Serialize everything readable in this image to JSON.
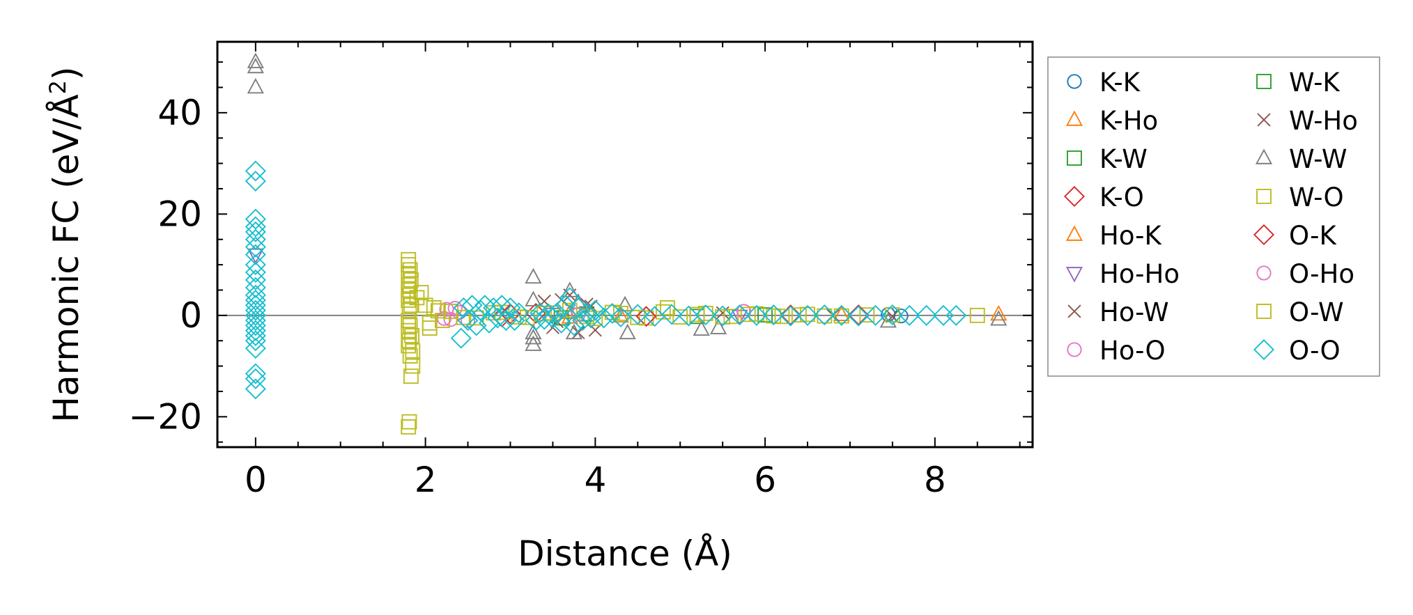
{
  "chart_data": {
    "type": "scatter",
    "xlabel": "Distance (Å)",
    "ylabel_main": "Harmonic FC (eV/Å",
    "ylabel_sup": "2",
    "ylabel_end": ")",
    "xlim": [
      -0.45,
      9.15
    ],
    "ylim": [
      -26,
      54
    ],
    "x_ticks": [
      0,
      2,
      4,
      6,
      8
    ],
    "x_tick_labels": [
      "0",
      "2",
      "4",
      "6",
      "8"
    ],
    "y_ticks": [
      -20,
      0,
      20,
      40
    ],
    "y_tick_labels": [
      "−20",
      "0",
      "20",
      "40"
    ],
    "zero_line": true,
    "grid": false,
    "legend_position": "outside-right",
    "series": [
      {
        "name": "K-K",
        "marker": "circle",
        "color": "#1f77b4",
        "x": [
          7.45,
          7.6
        ],
        "y": [
          0.2,
          -0.1
        ]
      },
      {
        "name": "K-Ho",
        "marker": "triangle-up",
        "color": "#ff7f0e",
        "x": [
          3.7,
          4.3,
          6.9
        ],
        "y": [
          0.5,
          -0.2,
          0.1
        ]
      },
      {
        "name": "K-W",
        "marker": "square",
        "color": "#2ca02c",
        "x": [
          3.9,
          5.2
        ],
        "y": [
          0.3,
          -0.2
        ]
      },
      {
        "name": "K-O",
        "marker": "diamond",
        "color": "#d62728",
        "x": [
          2.9,
          3.3,
          6.3
        ],
        "y": [
          -0.3,
          0.4,
          0.1
        ]
      },
      {
        "name": "Ho-K",
        "marker": "triangle-up",
        "color": "#ff7f0e",
        "x": [
          3.7,
          8.75
        ],
        "y": [
          -0.4,
          0.2
        ]
      },
      {
        "name": "Ho-Ho",
        "marker": "triangle-down",
        "color": "#9467bd",
        "x": [
          0.0,
          3.5,
          5.7
        ],
        "y": [
          12.0,
          0.3,
          -0.1
        ]
      },
      {
        "name": "Ho-W",
        "marker": "x",
        "color": "#8c564b",
        "x": [
          3.4,
          3.5,
          3.6,
          3.7,
          3.8,
          3.9,
          4.0,
          5.5,
          7.5
        ],
        "y": [
          2.8,
          -2.4,
          3.1,
          4.0,
          -3.4,
          2.2,
          -2.9,
          0.5,
          -0.2
        ]
      },
      {
        "name": "Ho-O",
        "marker": "circle",
        "color": "#e377c2",
        "x": [
          2.25,
          2.3,
          2.4,
          2.5
        ],
        "y": [
          1.2,
          -0.8,
          0.6,
          -1.0
        ]
      },
      {
        "name": "W-K",
        "marker": "square",
        "color": "#2ca02c",
        "x": [
          3.6,
          6.0
        ],
        "y": [
          -0.5,
          0.1
        ]
      },
      {
        "name": "W-Ho",
        "marker": "x",
        "color": "#8c564b",
        "x": [
          3.55,
          3.95,
          6.8
        ],
        "y": [
          -1.2,
          1.8,
          0.0
        ]
      },
      {
        "name": "W-W",
        "marker": "triangle-up",
        "color": "#7f7f7f",
        "x": [
          0.0,
          0.0,
          0.0,
          3.27,
          3.27,
          3.27,
          3.27,
          3.27,
          3.7,
          3.75,
          3.8,
          4.35,
          4.38,
          5.25,
          5.45,
          7.45,
          8.75
        ],
        "y": [
          50.0,
          49.0,
          45.0,
          7.5,
          3.0,
          -3.5,
          -4.5,
          -5.8,
          4.8,
          -3.5,
          2.5,
          2.0,
          -3.5,
          -2.8,
          -2.5,
          -1.2,
          -0.8
        ]
      },
      {
        "name": "W-O",
        "marker": "square",
        "color": "#bcbd22",
        "x": [
          1.8,
          1.8,
          1.82,
          1.8,
          1.83,
          1.81,
          1.8,
          1.82,
          1.8,
          1.83,
          1.81,
          1.8,
          1.82,
          1.8,
          1.84,
          1.81,
          1.8,
          1.82,
          1.85,
          1.83,
          1.8,
          1.81,
          1.95,
          2.0,
          2.05,
          2.1,
          2.2,
          2.3,
          2.6,
          2.9,
          3.2,
          3.5,
          3.7,
          4.0,
          4.3,
          4.6,
          4.8,
          5.0,
          5.3,
          5.6,
          5.9,
          6.2,
          6.5,
          6.9,
          7.2,
          7.5,
          8.5
        ],
        "y": [
          11.0,
          10.0,
          9.0,
          8.0,
          7.0,
          6.0,
          5.0,
          4.0,
          3.0,
          2.0,
          1.0,
          -1.0,
          -2.0,
          -3.0,
          -4.0,
          -5.0,
          -6.0,
          -8.0,
          -10.0,
          -12.0,
          -22.0,
          -21.0,
          4.5,
          2.0,
          -2.5,
          1.5,
          -1.0,
          0.8,
          -0.5,
          0.6,
          -0.4,
          0.5,
          1.0,
          -0.6,
          0.4,
          -0.5,
          0.7,
          -0.3,
          0.4,
          -0.2,
          0.3,
          -0.2,
          0.2,
          -0.1,
          0.1,
          0.1,
          0.0
        ]
      },
      {
        "name": "O-K",
        "marker": "diamond",
        "color": "#d62728",
        "x": [
          3.0,
          4.6,
          7.1
        ],
        "y": [
          0.3,
          -0.2,
          0.1
        ]
      },
      {
        "name": "O-Ho",
        "marker": "circle",
        "color": "#e377c2",
        "x": [
          2.22,
          2.35,
          3.8,
          5.75
        ],
        "y": [
          -0.6,
          1.4,
          0.2,
          0.8
        ]
      },
      {
        "name": "O-W",
        "marker": "square",
        "color": "#bcbd22",
        "x": [
          1.85,
          1.9,
          2.05,
          2.15,
          2.45,
          2.8,
          3.1,
          3.4,
          3.9,
          4.2,
          4.5,
          4.85,
          5.2,
          5.5,
          5.8,
          6.1,
          6.4,
          6.7
        ],
        "y": [
          -7.0,
          3.5,
          -1.5,
          0.9,
          -0.4,
          0.5,
          -0.3,
          0.4,
          -0.2,
          0.6,
          -0.4,
          1.5,
          0.2,
          -0.3,
          0.2,
          -0.1,
          0.1,
          -0.1
        ]
      },
      {
        "name": "O-O",
        "marker": "diamond",
        "color": "#17becf",
        "x": [
          0.0,
          0.0,
          0.0,
          0.0,
          0.0,
          0.0,
          0.0,
          0.0,
          0.0,
          0.0,
          0.0,
          0.0,
          0.0,
          0.0,
          0.0,
          0.0,
          0.0,
          0.0,
          0.0,
          0.0,
          0.0,
          0.0,
          0.0,
          0.0,
          0.0,
          0.0,
          2.42,
          2.45,
          2.5,
          2.55,
          2.6,
          2.65,
          2.7,
          2.75,
          2.8,
          2.85,
          2.9,
          2.95,
          3.0,
          3.05,
          3.1,
          3.3,
          3.35,
          3.4,
          3.45,
          3.5,
          3.55,
          3.6,
          3.65,
          3.7,
          3.75,
          3.8,
          3.85,
          3.9,
          3.95,
          4.0,
          4.1,
          4.2,
          4.3,
          4.5,
          4.7,
          4.9,
          5.1,
          5.3,
          5.5,
          5.7,
          5.9,
          6.1,
          6.3,
          6.5,
          6.7,
          6.9,
          7.1,
          7.3,
          7.5,
          7.7,
          7.9,
          8.1,
          8.25
        ],
        "y": [
          28.5,
          26.5,
          19.0,
          17.5,
          16.5,
          15.0,
          13.5,
          12.0,
          10.0,
          8.5,
          7.0,
          5.5,
          4.0,
          3.0,
          2.0,
          1.0,
          -1.0,
          -2.0,
          -3.0,
          -4.0,
          -5.0,
          -6.5,
          -11.5,
          -12.5,
          -14.5,
          0.0,
          -4.5,
          1.5,
          -1.0,
          2.0,
          -2.0,
          1.0,
          2.0,
          -1.5,
          1.5,
          -0.5,
          2.0,
          -1.0,
          1.5,
          -1.0,
          0.5,
          -1.0,
          0.5,
          -0.8,
          0.3,
          -0.5,
          0.5,
          -1.5,
          2.0,
          3.5,
          -2.0,
          1.5,
          -1.0,
          0.5,
          -0.5,
          1.0,
          -0.5,
          0.4,
          -0.3,
          0.2,
          -0.2,
          0.2,
          -0.1,
          0.1,
          -0.1,
          0.1,
          0.0,
          0.1,
          -0.1,
          0.0,
          0.1,
          0.0,
          -0.1,
          0.0,
          0.1,
          0.0,
          0.0,
          0.0,
          0.0
        ]
      }
    ]
  }
}
